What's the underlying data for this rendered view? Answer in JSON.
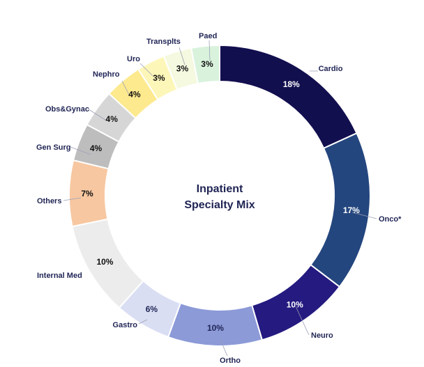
{
  "chart_data": {
    "type": "pie",
    "title_lines": [
      "Inpatient",
      "Specialty Mix"
    ],
    "slices": [
      {
        "label": "Cardio",
        "value": 18,
        "value_label": "18%",
        "color": "#120f4f",
        "text_color": "#ffffff"
      },
      {
        "label": "Onco*",
        "value": 17,
        "value_label": "17%",
        "color": "#24467e",
        "text_color": "#ffffff"
      },
      {
        "label": "Neuro",
        "value": 10,
        "value_label": "10%",
        "color": "#241a80",
        "text_color": "#ffffff"
      },
      {
        "label": "Ortho",
        "value": 10,
        "value_label": "10%",
        "color": "#8c9ad8",
        "text_color": "#1f2454"
      },
      {
        "label": "Gastro",
        "value": 6,
        "value_label": "6%",
        "color": "#d9def3",
        "text_color": "#1f2454"
      },
      {
        "label": "Internal Med",
        "value": 10,
        "value_label": "10%",
        "color": "#ececec",
        "text_color": "#111111"
      },
      {
        "label": "Others",
        "value": 7,
        "value_label": "7%",
        "color": "#f7c7a1",
        "text_color": "#111111"
      },
      {
        "label": "Gen Surg",
        "value": 4,
        "value_label": "4%",
        "color": "#bdbdbd",
        "text_color": "#111111"
      },
      {
        "label": "Obs&Gynac",
        "value": 4,
        "value_label": "4%",
        "color": "#d6d6d6",
        "text_color": "#111111"
      },
      {
        "label": "Nephro",
        "value": 4,
        "value_label": "4%",
        "color": "#fde98e",
        "text_color": "#111111"
      },
      {
        "label": "Uro",
        "value": 3,
        "value_label": "3%",
        "color": "#fdf6b9",
        "text_color": "#111111"
      },
      {
        "label": "Transplts",
        "value": 3,
        "value_label": "3%",
        "color": "#f4f9df",
        "text_color": "#111111"
      },
      {
        "label": "Paed",
        "value": 3,
        "value_label": "3%",
        "color": "#d9f2dc",
        "text_color": "#111111"
      }
    ]
  }
}
